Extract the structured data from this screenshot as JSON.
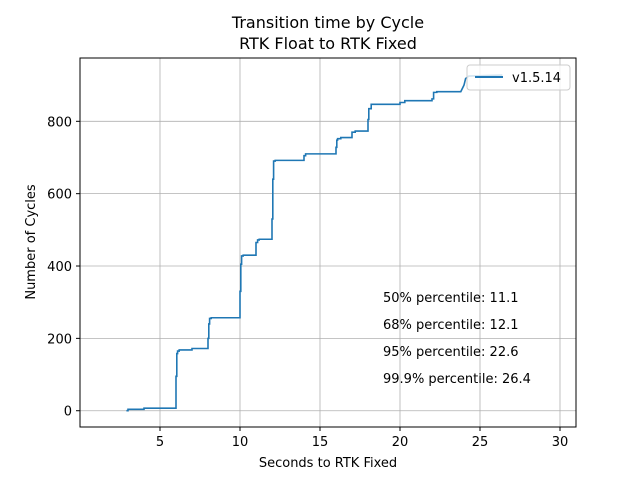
{
  "chart_data": {
    "type": "line",
    "title": "Transition time by Cycle",
    "subtitle": "RTK Float to RTK Fixed",
    "xlabel": "Seconds to RTK Fixed",
    "ylabel": "Number of Cycles",
    "xlim": [
      0,
      31
    ],
    "ylim": [
      -45,
      975
    ],
    "xticks": [
      5,
      10,
      15,
      20,
      25,
      30
    ],
    "yticks": [
      0,
      200,
      400,
      600,
      800
    ],
    "grid": true,
    "legend_position": "top-right",
    "series": [
      {
        "name": "v1.5.14",
        "color": "#1f77b4",
        "x": [
          2.9,
          3.0,
          3.0,
          4.0,
          4.0,
          5.9,
          6.0,
          6.0,
          6.05,
          6.05,
          6.1,
          6.1,
          6.2,
          6.2,
          7.0,
          7.0,
          8.0,
          8.0,
          8.05,
          8.05,
          8.1,
          8.1,
          8.2,
          8.2,
          9.9,
          10.0,
          10.0,
          10.05,
          10.05,
          10.1,
          10.1,
          10.2,
          10.2,
          10.9,
          11.0,
          11.0,
          11.1,
          11.1,
          11.2,
          11.2,
          12.0,
          12.0,
          12.05,
          12.05,
          12.1,
          12.1,
          12.2,
          12.2,
          14.0,
          14.0,
          14.1,
          14.1,
          16.0,
          16.0,
          16.05,
          16.05,
          16.1,
          16.1,
          16.3,
          16.3,
          17.0,
          17.0,
          17.2,
          17.2,
          18.0,
          18.0,
          18.05,
          18.05,
          18.2,
          18.2,
          19.9,
          20.0,
          20.0,
          20.3,
          20.3,
          22.0,
          22.0,
          22.1,
          22.1,
          22.3,
          22.3,
          23.8,
          24.0,
          24.0,
          24.1,
          24.1,
          24.3,
          24.3,
          26.4
        ],
        "y": [
          0,
          0,
          4,
          4,
          7,
          7,
          7,
          95,
          95,
          158,
          158,
          165,
          165,
          168,
          168,
          172,
          172,
          200,
          200,
          240,
          240,
          255,
          255,
          257,
          257,
          257,
          330,
          330,
          405,
          405,
          428,
          428,
          430,
          430,
          430,
          465,
          465,
          472,
          472,
          474,
          474,
          530,
          530,
          640,
          640,
          690,
          690,
          692,
          692,
          705,
          705,
          710,
          710,
          728,
          728,
          748,
          748,
          752,
          752,
          755,
          755,
          770,
          770,
          773,
          773,
          805,
          805,
          835,
          835,
          847,
          847,
          847,
          852,
          852,
          857,
          857,
          862,
          862,
          880,
          880,
          882,
          882,
          900,
          900,
          918,
          918,
          925,
          925,
          928
        ]
      }
    ],
    "annotations": [
      "50% percentile: 11.1",
      "68% percentile: 12.1",
      "95% percentile: 22.6",
      "99.9% percentile: 26.4"
    ]
  }
}
